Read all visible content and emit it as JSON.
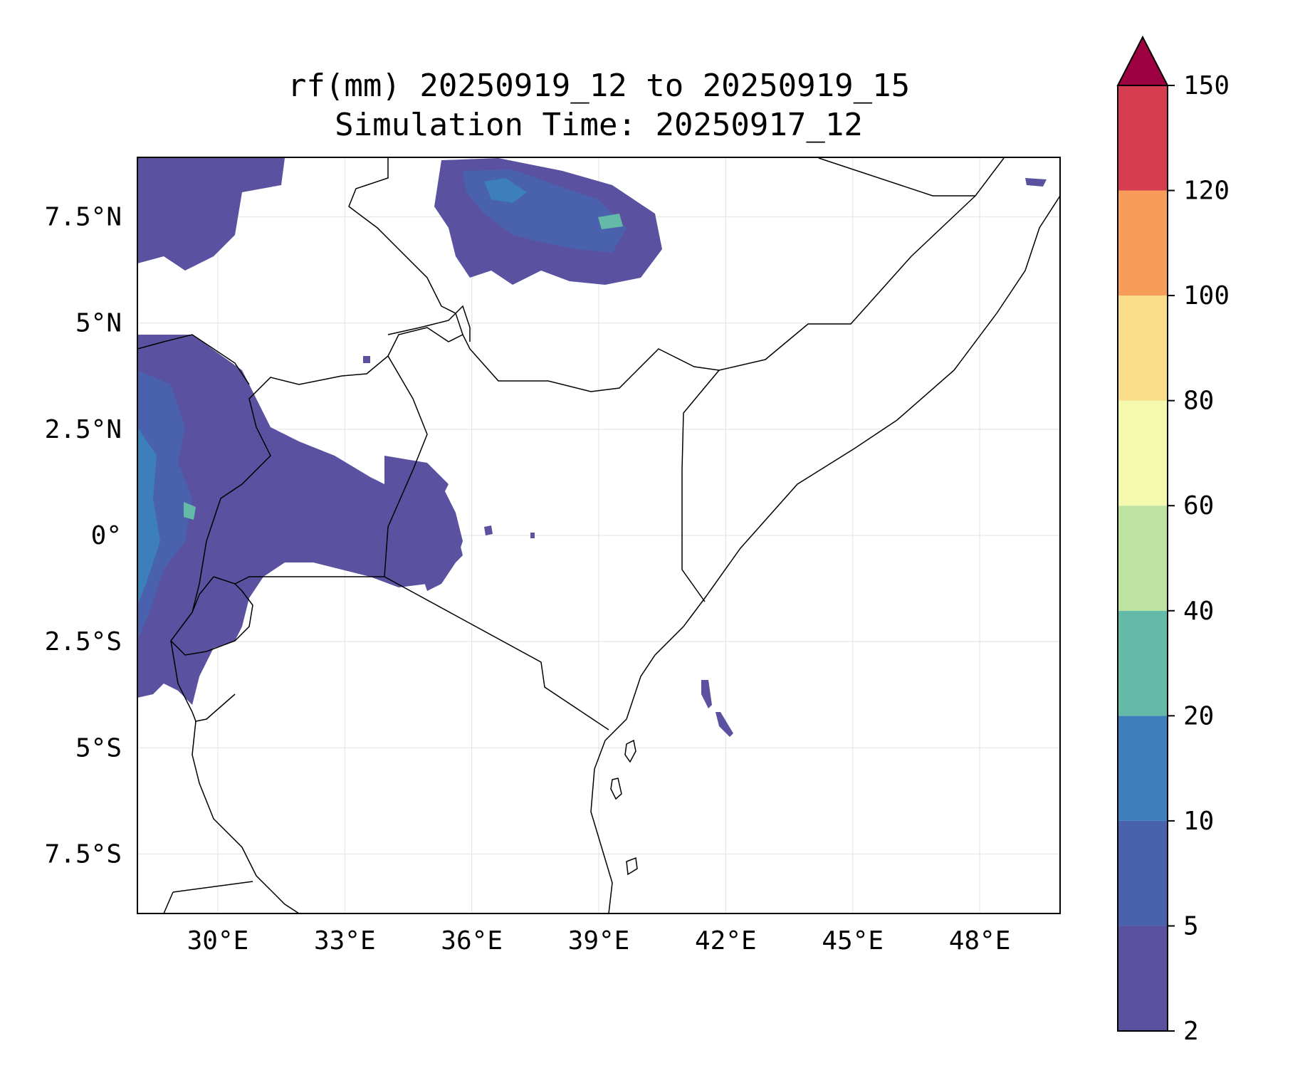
{
  "title": {
    "line1": "rf(mm) 20250919_12 to 20250919_15",
    "line2": "Simulation Time: 20250917_12"
  },
  "map": {
    "lon_range": [
      28.1,
      49.9
    ],
    "lat_range": [
      -8.9,
      8.9
    ],
    "grid": true,
    "lon_ticks": [
      {
        "value": 30,
        "label": "30°E"
      },
      {
        "value": 33,
        "label": "33°E"
      },
      {
        "value": 36,
        "label": "36°E"
      },
      {
        "value": 39,
        "label": "39°E"
      },
      {
        "value": 42,
        "label": "42°E"
      },
      {
        "value": 45,
        "label": "45°E"
      },
      {
        "value": 48,
        "label": "48°E"
      }
    ],
    "lat_ticks": [
      {
        "value": 7.5,
        "label": "7.5°N"
      },
      {
        "value": 5,
        "label": "5°N"
      },
      {
        "value": 2.5,
        "label": "2.5°N"
      },
      {
        "value": 0,
        "label": "0°"
      },
      {
        "value": -2.5,
        "label": "2.5°S"
      },
      {
        "value": -5,
        "label": "5°S"
      },
      {
        "value": -7.5,
        "label": "7.5°S"
      }
    ]
  },
  "colorbar": {
    "levels": [
      2,
      5,
      10,
      20,
      40,
      60,
      80,
      100,
      120,
      150
    ],
    "labels": [
      "2",
      "5",
      "10",
      "20",
      "40",
      "60",
      "80",
      "100",
      "120",
      "150"
    ],
    "colors": [
      "#5a52a0",
      "#4a62ae",
      "#3c7fba",
      "#63bba7",
      "#bde3a1",
      "#f4f9ad",
      "#fadd8a",
      "#f89c59",
      "#d63d4f"
    ],
    "extend_color": "#9e0142",
    "extend": "max"
  }
}
